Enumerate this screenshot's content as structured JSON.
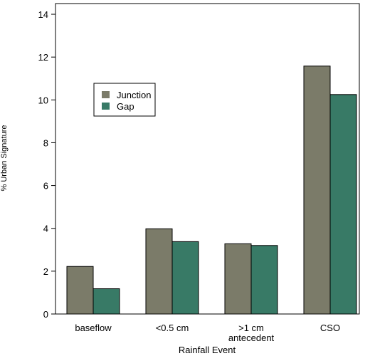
{
  "chart_data": {
    "type": "bar",
    "categories": [
      [
        "baseflow"
      ],
      [
        "<0.5 cm"
      ],
      [
        ">1 cm",
        "antecedent"
      ],
      [
        "CSO"
      ]
    ],
    "series": [
      {
        "name": "Junction",
        "color": "#7b7b69",
        "values": [
          2.22,
          3.98,
          3.28,
          11.58
        ]
      },
      {
        "name": "Gap",
        "color": "#387a66",
        "values": [
          1.18,
          3.38,
          3.2,
          10.25
        ]
      }
    ],
    "xlabel": "Rainfall Event",
    "ylabel": "% Urban Signature",
    "ylim": [
      0,
      14.5
    ],
    "yticks": [
      0,
      2,
      4,
      6,
      8,
      10,
      12,
      14
    ],
    "legend_position": "upper-left",
    "grid": false
  }
}
